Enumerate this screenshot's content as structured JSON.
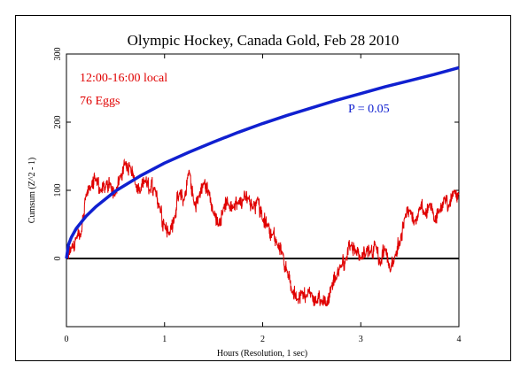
{
  "chart_data": {
    "type": "line",
    "title": "Olympic Hockey, Canada Gold, Feb 28 2010",
    "xlabel": "Hours (Resolution, 1 sec)",
    "ylabel": "Cumsum (Z^2 - 1)",
    "xlim": [
      0,
      4
    ],
    "ylim": [
      -100,
      300
    ],
    "x_ticks": [
      "0",
      "1",
      "2",
      "3",
      "4"
    ],
    "y_ticks": [
      "0",
      "100",
      "200",
      "300"
    ],
    "grid": false,
    "annotations": {
      "time_window": "12:00-16:00 local",
      "eggs": "76 Eggs",
      "probability_label": "P = 0.05"
    },
    "colors": {
      "cumsum": "#e00000",
      "probability": "#1020d0",
      "zero_line": "#000000",
      "annotation_red": "#e00000",
      "annotation_blue": "#1020d0"
    },
    "series": [
      {
        "style": "red-noisy",
        "x": [
          0,
          0.05,
          0.1,
          0.15,
          0.2,
          0.25,
          0.3,
          0.35,
          0.4,
          0.45,
          0.5,
          0.55,
          0.6,
          0.65,
          0.7,
          0.75,
          0.8,
          0.85,
          0.9,
          0.95,
          1.0,
          1.05,
          1.1,
          1.15,
          1.2,
          1.25,
          1.3,
          1.35,
          1.4,
          1.45,
          1.5,
          1.55,
          1.6,
          1.65,
          1.7,
          1.75,
          1.8,
          1.85,
          1.9,
          1.95,
          2.0,
          2.05,
          2.1,
          2.15,
          2.2,
          2.25,
          2.3,
          2.35,
          2.4,
          2.45,
          2.5,
          2.55,
          2.6,
          2.65,
          2.7,
          2.75,
          2.8,
          2.85,
          2.9,
          2.95,
          3.0,
          3.05,
          3.1,
          3.15,
          3.2,
          3.25,
          3.3,
          3.35,
          3.4,
          3.45,
          3.5,
          3.55,
          3.6,
          3.65,
          3.7,
          3.75,
          3.8,
          3.85,
          3.9,
          3.95,
          4.0
        ],
        "values": [
          0,
          15,
          30,
          35,
          95,
          105,
          115,
          100,
          105,
          110,
          95,
          120,
          140,
          135,
          110,
          95,
          115,
          100,
          105,
          75,
          50,
          35,
          60,
          95,
          85,
          130,
          80,
          90,
          110,
          100,
          65,
          50,
          75,
          80,
          75,
          80,
          85,
          90,
          75,
          90,
          55,
          50,
          35,
          20,
          10,
          -20,
          -50,
          -60,
          -50,
          -55,
          -50,
          -65,
          -60,
          -70,
          -40,
          -30,
          -10,
          0,
          20,
          10,
          0,
          5,
          10,
          20,
          -10,
          15,
          -20,
          5,
          20,
          60,
          70,
          55,
          75,
          65,
          80,
          55,
          70,
          90,
          75,
          100,
          95
        ]
      },
      {
        "name": "P = 0.05",
        "style": "blue-smooth",
        "x": [
          0,
          0.02,
          0.05,
          0.1,
          0.2,
          0.3,
          0.5,
          0.75,
          1.0,
          1.25,
          1.5,
          1.75,
          2.0,
          2.25,
          2.5,
          2.75,
          3.0,
          3.25,
          3.5,
          3.75,
          4.0
        ],
        "values": [
          0,
          20,
          31,
          44,
          62,
          76,
          99,
          121,
          140,
          156,
          171,
          185,
          198,
          210,
          221,
          232,
          242,
          252,
          261,
          270,
          280
        ]
      }
    ]
  }
}
